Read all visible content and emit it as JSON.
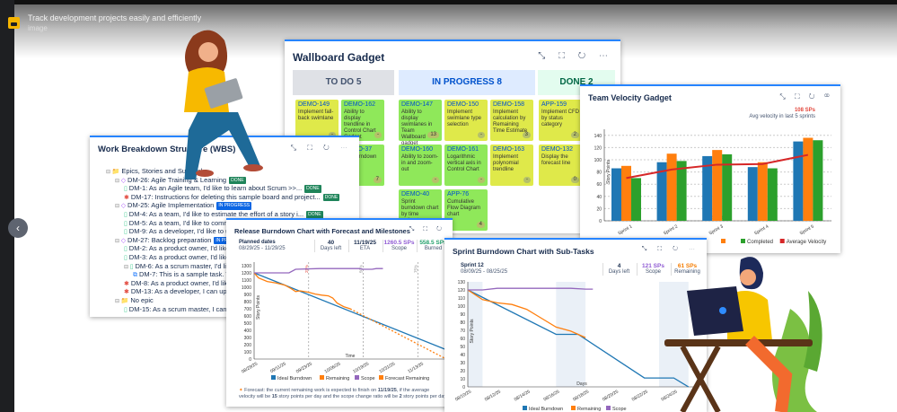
{
  "viewer": {
    "caption": "Track development projects easily and efficiently",
    "subcaption": "image",
    "prev_label": "‹"
  },
  "wallboard": {
    "title": "Wallboard Gadget",
    "tools": "⤡ ⛶ ↻ ⋯",
    "columns": [
      {
        "label": "TO DO 5",
        "bg": "#dfe1e6",
        "fg": "#42526e"
      },
      {
        "label": "IN PROGRESS 8",
        "bg": "#deebff",
        "fg": "#0052cc"
      },
      {
        "label": "DONE 2",
        "bg": "#e3fcef",
        "fg": "#006644"
      }
    ],
    "cards": [
      {
        "key": "DEMO-149",
        "text": "Implement fall-back swimlane",
        "n": "-",
        "color": "#dfe94a"
      },
      {
        "key": "DEMO-162",
        "text": "Ability to display trendline in Control Chart Gadget",
        "n": "-",
        "color": "#8fe85a"
      },
      {
        "key": "DEMO-37",
        "text": "...n burndown",
        "n": "7",
        "color": "#8fe85a"
      },
      {
        "key": "DEMO-147",
        "text": "Ability to display swimlanes in Team Wallboard gadget",
        "n": "13",
        "color": "#8fe85a"
      },
      {
        "key": "DEMO-150",
        "text": "Implement swimlane type selection",
        "n": "-",
        "color": "#dfe94a"
      },
      {
        "key": "DEMO-158",
        "text": "Implement calculation by Remaining Time Estimate",
        "n": "3",
        "color": "#dfe94a"
      },
      {
        "key": "DEMO-160",
        "text": "Ability to zoom-in and zoom-out",
        "n": "-",
        "color": "#8fe85a"
      },
      {
        "key": "DEMO-161",
        "text": "Logarithmic vertical axis in Control Chart",
        "n": "-",
        "color": "#8fe85a"
      },
      {
        "key": "DEMO-163",
        "text": "Implement polynomial trendline",
        "n": "-",
        "color": "#dfe94a"
      },
      {
        "key": "DEMO-40",
        "text": "Sprint burndown chart by time estimates",
        "n": "",
        "color": "#8fe85a"
      },
      {
        "key": "APP-76",
        "text": "Cumulative Flow Diagram chart",
        "n": "4",
        "color": "#8fe85a"
      },
      {
        "key": "APP-159",
        "text": "Implement CFD by status category",
        "n": "2",
        "color": "#dfe94a"
      },
      {
        "key": "DEMO-132",
        "text": "Display the forecast line",
        "n": "0",
        "color": "#dfe94a"
      }
    ]
  },
  "wbs": {
    "title": "Work Breakdown Structure (WBS)",
    "tools": "⤡ ⛶ ↻ ⋯",
    "rows": [
      {
        "text": "Epics, Stories and Sub-tasks",
        "level": 0,
        "icon": "folder"
      },
      {
        "text": "DM-26: Agile Training & Learning",
        "level": 1,
        "icon": "epic",
        "badge": "DONE"
      },
      {
        "text": "DM-1: As an Agile team, I'd like to learn about Scrum >>...",
        "level": 2,
        "icon": "story",
        "badge": "DONE"
      },
      {
        "text": "DM-17: Instructions for deleting this sample board and project...",
        "level": 2,
        "icon": "bug",
        "badge": "DONE"
      },
      {
        "text": "DM-25: Agile Implementation",
        "level": 1,
        "icon": "epic",
        "badge": "IN PROGRESS"
      },
      {
        "text": "DM-4: As a team, I'd like to estimate the effort of a story i...",
        "level": 2,
        "icon": "story",
        "badge": "DONE"
      },
      {
        "text": "DM-5: As a team, I'd like to comm",
        "level": 2,
        "icon": "story"
      },
      {
        "text": "DM-9: As a developer, I'd like to u",
        "level": 2,
        "icon": "story"
      },
      {
        "text": "DM-27: Backlog preparation",
        "level": 1,
        "icon": "epic",
        "badge": "IN PROGRESS"
      },
      {
        "text": "DM-2: As a product owner, I'd like",
        "level": 2,
        "icon": "story"
      },
      {
        "text": "DM-3: As a product owner, I'd like",
        "level": 2,
        "icon": "story"
      },
      {
        "text": "DM-6: As a scrum master, I'd like",
        "level": 2,
        "icon": "story"
      },
      {
        "text": "DM-7: This is a sample task. Ta",
        "level": 3,
        "icon": "subtask"
      },
      {
        "text": "DM-8: As a product owner, I'd like",
        "level": 2,
        "icon": "bug"
      },
      {
        "text": "DM-13: As a developer, I can upd",
        "level": 2,
        "icon": "bug"
      },
      {
        "text": "No epic",
        "level": 1,
        "icon": "folder"
      },
      {
        "text": "DM-15: As a scrum master, I can s",
        "level": 2,
        "icon": "story"
      }
    ]
  },
  "velocity": {
    "title": "Team Velocity Gadget",
    "tools": "⤡ ⛶ ↻ ⚭",
    "avg_value": "108 SPs",
    "avg_label": "Avg velocity in last 5 sprints"
  },
  "release": {
    "title": "Release Burndown Chart with Forecast and Milestones",
    "tools": "⤡ ⛶ ↻",
    "planned_label": "Planned dates",
    "planned_value": "08/29/25 - 11/29/25",
    "stats": [
      {
        "value": "40",
        "label": "Days left",
        "color": "#172b4d"
      },
      {
        "value": "11/19/25",
        "label": "ETA",
        "color": "#172b4d"
      },
      {
        "value": "1260.5 SPs",
        "label": "Scope",
        "color": "#8f5bd3"
      },
      {
        "value": "558.5 SPs",
        "label": "Burned",
        "color": "#22a06b"
      }
    ],
    "note_prefix": "Forecast: the current remaining work is expected to finish on ",
    "note_date": "11/19/25",
    "note_mid": ", if the average velocity will be ",
    "note_vel": "15",
    "note_mid2": " story points per day and the scope change ratio will be ",
    "note_scope": "2",
    "note_suffix": " story points per day"
  },
  "sprint": {
    "title": "Sprint Burndown Chart with Sub-Tasks",
    "tools": "⤡ ⛶ ↻ ⋯",
    "sprint_name": "Sprint 12",
    "sprint_dates": "08/09/25 - 08/25/25",
    "stats": [
      {
        "value": "4",
        "label": "Days left",
        "color": "#172b4d"
      },
      {
        "value": "121 SPs",
        "label": "Scope",
        "color": "#8f5bd3"
      },
      {
        "value": "61 SPs",
        "label": "Remaining",
        "color": "#f57c00"
      }
    ]
  },
  "chart_data": [
    {
      "id": "velocity",
      "type": "bar",
      "categories": [
        "Sprint 1",
        "Sprint 2",
        "Sprint 3",
        "Sprint 4",
        "Sprint 5"
      ],
      "series": [
        {
          "name": "",
          "color": "#1f77b4",
          "values": [
            86,
            96,
            106,
            88,
            130
          ]
        },
        {
          "name": "",
          "color": "#ff7f0e",
          "values": [
            90,
            110,
            116,
            96,
            136
          ]
        },
        {
          "name": "Completed",
          "color": "#2ca02c",
          "values": [
            70,
            98,
            109,
            86,
            132
          ]
        }
      ],
      "line": {
        "name": "Average Velocity",
        "color": "#d62728",
        "values": [
          70,
          84,
          92,
          93,
          108
        ]
      },
      "xlabel": "Sprints",
      "ylabel": "Story Points",
      "ylim": [
        0,
        150
      ],
      "yticks": [
        0,
        20,
        40,
        60,
        80,
        100,
        120,
        140
      ],
      "grid": true,
      "legend": "bottom"
    },
    {
      "id": "release",
      "type": "line",
      "xlabel": "Time",
      "ylabel": "Story Points",
      "xlim": [
        0,
        88
      ],
      "ylim": [
        0,
        1350
      ],
      "yticks": [
        0,
        100,
        200,
        300,
        400,
        500,
        600,
        700,
        800,
        900,
        1000,
        1100,
        1200,
        1300
      ],
      "xticks": [
        {
          "x": 0,
          "label": "08/29/25"
        },
        {
          "x": 13,
          "label": "09/11/25"
        },
        {
          "x": 25,
          "label": "09/23/25"
        },
        {
          "x": 38,
          "label": "10/06/25"
        },
        {
          "x": 51,
          "label": "10/19/25"
        },
        {
          "x": 63,
          "label": "10/31/25"
        },
        {
          "x": 76,
          "label": "11/13/25"
        }
      ],
      "milestones": [
        {
          "x": 25,
          "label": "25%",
          "color": "#e2483d"
        },
        {
          "x": 50,
          "label": "50%",
          "color": "#888"
        },
        {
          "x": 75,
          "label": "75%",
          "color": "#888"
        }
      ],
      "series": [
        {
          "name": "Ideal Burndown",
          "color": "#1f77b4",
          "points": [
            [
              0,
              1200
            ],
            [
              88,
              130
            ]
          ]
        },
        {
          "name": "Remaining",
          "color": "#ff7f0e",
          "points": [
            [
              0,
              1200
            ],
            [
              2,
              1130
            ],
            [
              6,
              1080
            ],
            [
              10,
              1060
            ],
            [
              14,
              1030
            ],
            [
              17,
              980
            ],
            [
              19,
              940
            ],
            [
              21,
              950
            ],
            [
              25,
              930
            ],
            [
              28,
              905
            ],
            [
              31,
              890
            ],
            [
              34,
              880
            ],
            [
              36,
              850
            ],
            [
              38,
              780
            ],
            [
              41,
              730
            ],
            [
              44,
              700
            ]
          ]
        },
        {
          "name": "Scope",
          "color": "#9467bd",
          "points": [
            [
              0,
              1200
            ],
            [
              16,
              1200
            ],
            [
              19,
              1250
            ],
            [
              30,
              1260
            ],
            [
              48,
              1260
            ],
            [
              50,
              1250
            ],
            [
              54,
              1250
            ],
            [
              56,
              1260
            ],
            [
              59,
              1260
            ]
          ]
        },
        {
          "name": "Forecast Remaining",
          "color": "#ff7f0e",
          "dashed": true,
          "points": [
            [
              44,
              700
            ],
            [
              88,
              0
            ]
          ]
        }
      ],
      "legend": "bottom"
    },
    {
      "id": "sprint",
      "type": "line",
      "xlabel": "Days",
      "ylabel": "Story Points",
      "xlim": [
        0,
        15.5
      ],
      "ylim": [
        0,
        130
      ],
      "yticks": [
        0,
        10,
        20,
        30,
        40,
        50,
        60,
        70,
        80,
        90,
        100,
        110,
        120,
        130
      ],
      "xticks": [
        {
          "x": 0,
          "label": "08/10/25"
        },
        {
          "x": 2,
          "label": "08/12/25"
        },
        {
          "x": 4,
          "label": "08/14/25"
        },
        {
          "x": 6,
          "label": "08/16/25"
        },
        {
          "x": 8,
          "label": "08/18/25"
        },
        {
          "x": 10,
          "label": "08/20/25"
        },
        {
          "x": 12,
          "label": "08/22/25"
        },
        {
          "x": 14,
          "label": "08/24/25"
        }
      ],
      "nonworking": [
        [
          0,
          1
        ],
        [
          6,
          8
        ],
        [
          13,
          15
        ]
      ],
      "series": [
        {
          "name": "Ideal Burndown",
          "color": "#1f77b4",
          "points": [
            [
              0,
              120
            ],
            [
              6,
              65
            ],
            [
              7.5,
              65
            ],
            [
              12,
              11
            ],
            [
              14,
              11
            ],
            [
              15,
              0
            ]
          ]
        },
        {
          "name": "Remaining",
          "color": "#ff7f0e",
          "points": [
            [
              0,
              120
            ],
            [
              1,
              108
            ],
            [
              2,
              104
            ],
            [
              3,
              102
            ],
            [
              4,
              96
            ],
            [
              5,
              85
            ],
            [
              6,
              74
            ],
            [
              7,
              69
            ],
            [
              8,
              61
            ]
          ]
        },
        {
          "name": "Scope",
          "color": "#9467bd",
          "points": [
            [
              0,
              120
            ],
            [
              1,
              120
            ],
            [
              2,
              122
            ],
            [
              7,
              122
            ],
            [
              8,
              121
            ],
            [
              8.5,
              121
            ]
          ]
        }
      ],
      "legend": "bottom"
    }
  ]
}
